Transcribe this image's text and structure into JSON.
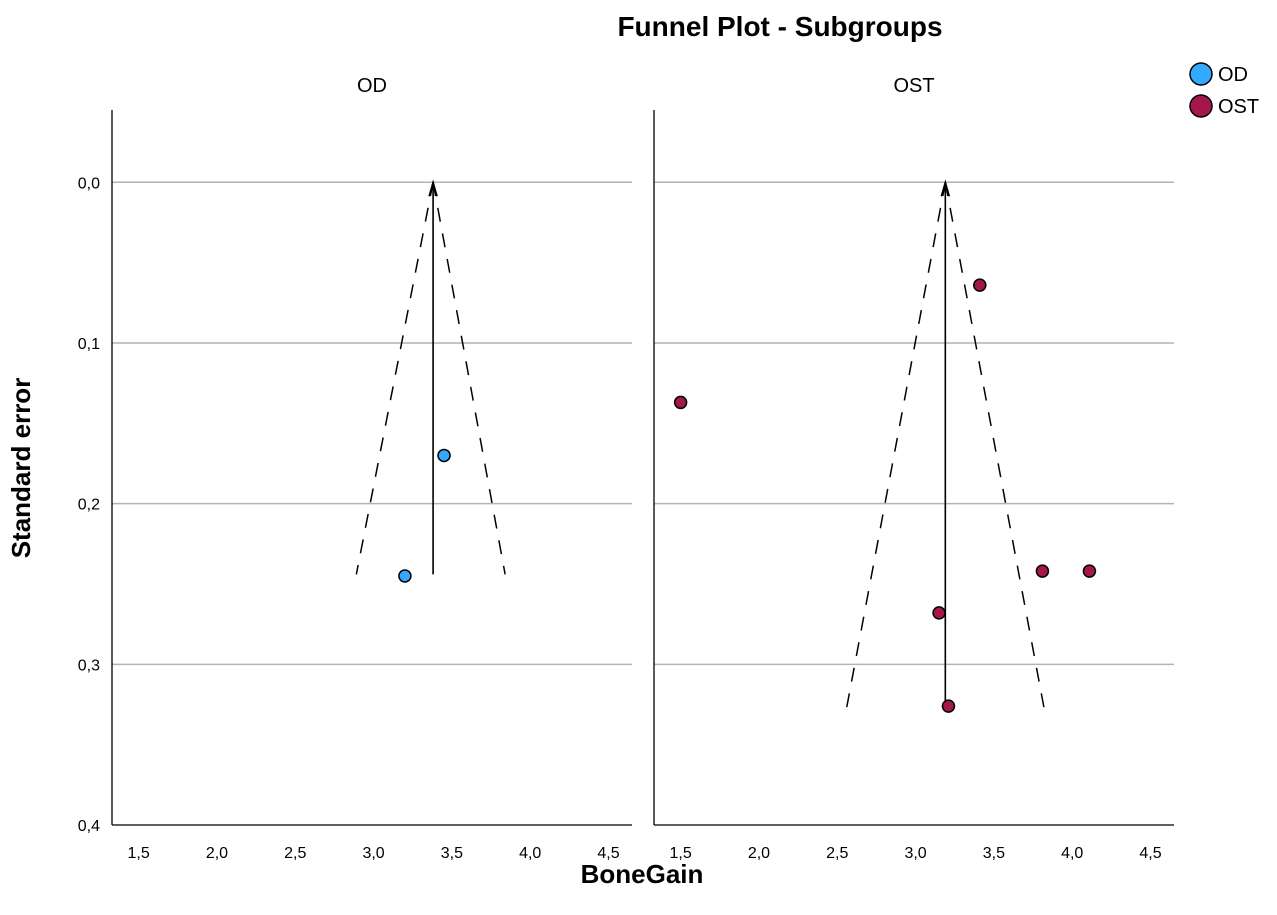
{
  "chart_data": {
    "type": "scatter",
    "title": "Funnel Plot - Subgroups",
    "xlabel": "BoneGain",
    "ylabel": "Standard error",
    "xlim": [
      1.33,
      4.65
    ],
    "ylim": [
      0.4,
      -0.045
    ],
    "y_reversed": true,
    "grid": "horizontal",
    "legend_position": "top-right",
    "x_ticks": [
      "1,5",
      "2,0",
      "2,5",
      "3,0",
      "3,5",
      "4,0",
      "4,5"
    ],
    "x_tick_values": [
      1.5,
      2.0,
      2.5,
      3.0,
      3.5,
      4.0,
      4.5
    ],
    "y_ticks": [
      "0,0",
      "0,1",
      "0,2",
      "0,3",
      "0,4"
    ],
    "y_tick_values": [
      0.0,
      0.1,
      0.2,
      0.3,
      0.4
    ],
    "legend": [
      {
        "label": "OD",
        "color": "#33AAFF"
      },
      {
        "label": "OST",
        "color": "#A3174B"
      }
    ],
    "panels": [
      {
        "label": "OD",
        "color": "#33AAFF",
        "pooled_estimate": 3.38,
        "funnel_max_se": 0.244,
        "funnel_left_bottom": 2.89,
        "funnel_right_bottom": 3.84,
        "points": [
          {
            "x": 3.45,
            "y": 0.17
          },
          {
            "x": 3.2,
            "y": 0.245
          }
        ]
      },
      {
        "label": "OST",
        "color": "#A3174B",
        "pooled_estimate": 3.19,
        "funnel_max_se": 0.327,
        "funnel_left_bottom": 2.56,
        "funnel_right_bottom": 3.82,
        "points": [
          {
            "x": 3.41,
            "y": 0.064
          },
          {
            "x": 1.5,
            "y": 0.137
          },
          {
            "x": 3.81,
            "y": 0.242
          },
          {
            "x": 4.11,
            "y": 0.242
          },
          {
            "x": 3.15,
            "y": 0.268
          },
          {
            "x": 3.21,
            "y": 0.326
          }
        ]
      }
    ]
  }
}
